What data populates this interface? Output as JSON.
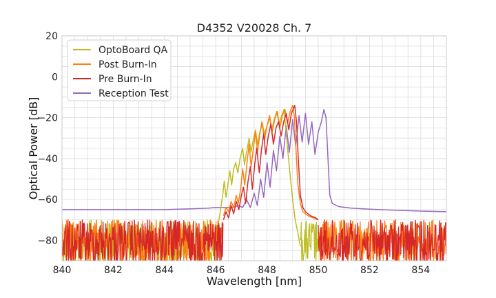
{
  "chart_data": {
    "type": "line",
    "title": "D4352 V20028 Ch. 7",
    "xlabel": "Wavelength [nm]",
    "ylabel": "Optical Power [dB]",
    "xlim": [
      840,
      855
    ],
    "ylim": [
      -90,
      20
    ],
    "xticks": [
      840,
      842,
      844,
      846,
      848,
      850,
      852,
      854
    ],
    "yticks": [
      -80,
      -60,
      -40,
      -20,
      0,
      20
    ],
    "x_tick_labels": [
      "840",
      "842",
      "844",
      "846",
      "848",
      "850",
      "852",
      "854"
    ],
    "y_tick_labels": [
      "−80",
      "−60",
      "−40",
      "−20",
      "0",
      "20"
    ],
    "grid": true,
    "legend_position": "top-left",
    "series": [
      {
        "name": "OptoBoard QA",
        "color": "#bcbd22",
        "noise_region": [
          [
            840,
            846.1
          ],
          [
            849.3,
            850.0
          ]
        ],
        "points": [
          [
            846.1,
            -72
          ],
          [
            846.2,
            -64
          ],
          [
            846.28,
            -57
          ],
          [
            846.33,
            -51
          ],
          [
            846.4,
            -59
          ],
          [
            846.48,
            -52
          ],
          [
            846.55,
            -46
          ],
          [
            846.62,
            -53
          ],
          [
            846.7,
            -45
          ],
          [
            846.78,
            -42
          ],
          [
            846.86,
            -47
          ],
          [
            846.95,
            -40
          ],
          [
            847.05,
            -35
          ],
          [
            847.12,
            -43
          ],
          [
            847.2,
            -37
          ],
          [
            847.3,
            -30
          ],
          [
            847.38,
            -37
          ],
          [
            847.46,
            -31
          ],
          [
            847.55,
            -26
          ],
          [
            847.63,
            -33
          ],
          [
            847.72,
            -27
          ],
          [
            847.82,
            -23
          ],
          [
            847.9,
            -28
          ],
          [
            848.0,
            -24
          ],
          [
            848.1,
            -20
          ],
          [
            848.18,
            -26
          ],
          [
            848.28,
            -21
          ],
          [
            848.38,
            -17
          ],
          [
            848.47,
            -23
          ],
          [
            848.57,
            -19
          ],
          [
            848.66,
            -16
          ],
          [
            848.73,
            -25
          ],
          [
            848.8,
            -35
          ],
          [
            848.9,
            -48
          ],
          [
            849.0,
            -60
          ],
          [
            849.1,
            -70
          ],
          [
            849.2,
            -76
          ],
          [
            849.3,
            -83
          ]
        ]
      },
      {
        "name": "Post Burn-In",
        "color": "#ff7f0e",
        "noise_region": [
          [
            840,
            846.3
          ],
          [
            850.0,
            855
          ]
        ],
        "points": [
          [
            846.3,
            -68
          ],
          [
            846.4,
            -64
          ],
          [
            846.5,
            -66
          ],
          [
            846.6,
            -61
          ],
          [
            846.7,
            -64
          ],
          [
            846.8,
            -58
          ],
          [
            846.88,
            -62
          ],
          [
            846.97,
            -55
          ],
          [
            847.05,
            -45
          ],
          [
            847.13,
            -53
          ],
          [
            847.22,
            -42
          ],
          [
            847.3,
            -33
          ],
          [
            847.38,
            -44
          ],
          [
            847.47,
            -35
          ],
          [
            847.55,
            -27
          ],
          [
            847.63,
            -37
          ],
          [
            847.72,
            -28
          ],
          [
            847.8,
            -22
          ],
          [
            847.9,
            -31
          ],
          [
            848.0,
            -24
          ],
          [
            848.1,
            -19
          ],
          [
            848.2,
            -27
          ],
          [
            848.3,
            -21
          ],
          [
            848.4,
            -17
          ],
          [
            848.5,
            -25
          ],
          [
            848.6,
            -19
          ],
          [
            848.7,
            -16
          ],
          [
            848.8,
            -23
          ],
          [
            848.9,
            -17
          ],
          [
            849.0,
            -14
          ],
          [
            849.07,
            -20
          ],
          [
            849.13,
            -35
          ],
          [
            849.2,
            -52
          ],
          [
            849.3,
            -62
          ],
          [
            849.4,
            -66
          ],
          [
            849.6,
            -68
          ],
          [
            849.8,
            -69
          ],
          [
            850.0,
            -70
          ]
        ]
      },
      {
        "name": "Pre Burn-In",
        "color": "#d62728",
        "noise_region": [
          [
            840,
            846.3
          ],
          [
            850.0,
            855
          ]
        ],
        "points": [
          [
            846.3,
            -70
          ],
          [
            846.4,
            -66
          ],
          [
            846.5,
            -69
          ],
          [
            846.6,
            -63
          ],
          [
            846.7,
            -67
          ],
          [
            846.8,
            -61
          ],
          [
            846.9,
            -65
          ],
          [
            847.0,
            -58
          ],
          [
            847.08,
            -54
          ],
          [
            847.17,
            -62
          ],
          [
            847.25,
            -52
          ],
          [
            847.35,
            -44
          ],
          [
            847.43,
            -55
          ],
          [
            847.52,
            -43
          ],
          [
            847.6,
            -35
          ],
          [
            847.7,
            -47
          ],
          [
            847.78,
            -36
          ],
          [
            847.87,
            -28
          ],
          [
            847.95,
            -38
          ],
          [
            848.05,
            -29
          ],
          [
            848.15,
            -23
          ],
          [
            848.25,
            -33
          ],
          [
            848.35,
            -25
          ],
          [
            848.45,
            -22
          ],
          [
            848.55,
            -29
          ],
          [
            848.65,
            -22
          ],
          [
            848.75,
            -18
          ],
          [
            848.85,
            -26
          ],
          [
            848.95,
            -18
          ],
          [
            849.08,
            -14
          ],
          [
            849.15,
            -22
          ],
          [
            849.22,
            -40
          ],
          [
            849.3,
            -58
          ],
          [
            849.4,
            -64
          ],
          [
            849.5,
            -66
          ],
          [
            849.7,
            -68
          ],
          [
            849.9,
            -69
          ],
          [
            850.0,
            -70
          ]
        ]
      },
      {
        "name": "Reception Test",
        "color": "#9467bd",
        "noise_region": [],
        "points": [
          [
            840,
            -65
          ],
          [
            841,
            -65
          ],
          [
            842,
            -65
          ],
          [
            843,
            -65
          ],
          [
            844,
            -65
          ],
          [
            845,
            -64.6
          ],
          [
            845.7,
            -64.3
          ],
          [
            846.0,
            -64
          ],
          [
            846.3,
            -64
          ],
          [
            846.6,
            -64
          ],
          [
            846.9,
            -63
          ],
          [
            847.05,
            -64
          ],
          [
            847.2,
            -60
          ],
          [
            847.35,
            -64
          ],
          [
            847.5,
            -57
          ],
          [
            847.62,
            -63
          ],
          [
            847.75,
            -50
          ],
          [
            847.87,
            -59
          ],
          [
            848.0,
            -42
          ],
          [
            848.12,
            -54
          ],
          [
            848.25,
            -36
          ],
          [
            848.37,
            -46
          ],
          [
            848.5,
            -29
          ],
          [
            848.62,
            -40
          ],
          [
            848.75,
            -24
          ],
          [
            848.87,
            -37
          ],
          [
            849.0,
            -21
          ],
          [
            849.12,
            -34
          ],
          [
            849.25,
            -19
          ],
          [
            849.37,
            -32
          ],
          [
            849.5,
            -18
          ],
          [
            849.62,
            -33
          ],
          [
            849.75,
            -22
          ],
          [
            849.87,
            -38
          ],
          [
            850.0,
            -27
          ],
          [
            850.12,
            -22
          ],
          [
            850.22,
            -16
          ],
          [
            850.3,
            -20
          ],
          [
            850.38,
            -40
          ],
          [
            850.45,
            -58
          ],
          [
            850.55,
            -62
          ],
          [
            850.8,
            -63.5
          ],
          [
            851.3,
            -64.3
          ],
          [
            852,
            -64.8
          ],
          [
            853,
            -65.3
          ],
          [
            854,
            -65.7
          ],
          [
            855,
            -66
          ]
        ]
      }
    ]
  }
}
